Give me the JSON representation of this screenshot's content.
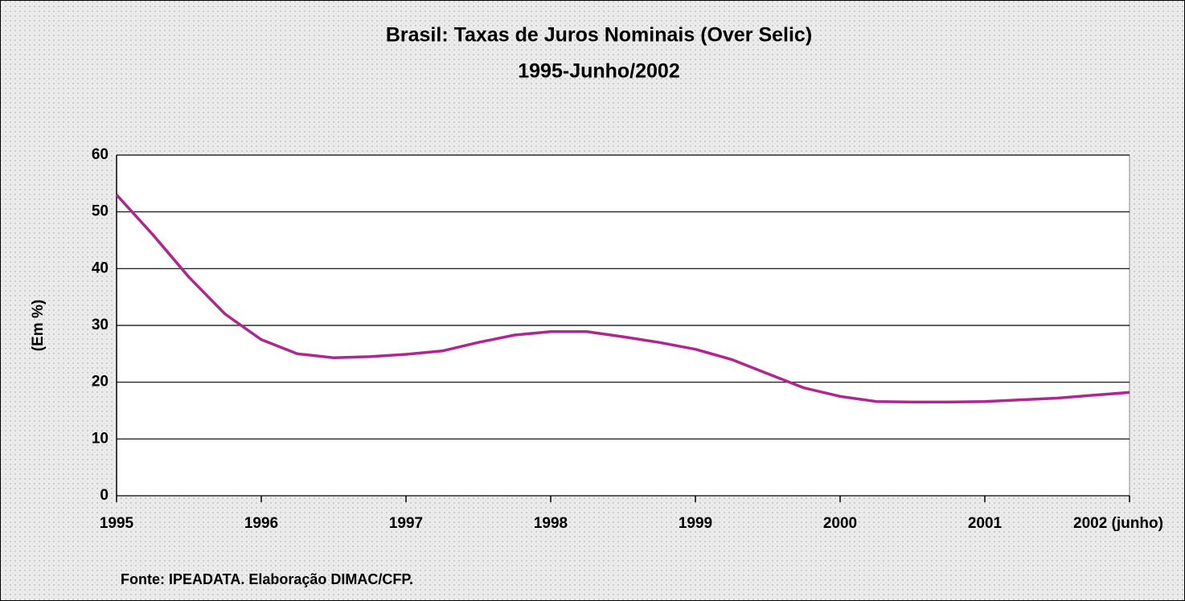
{
  "chart_data": {
    "type": "line",
    "title": "Brasil: Taxas de Juros Nominais (Over Selic)",
    "subtitle": "1995-Junho/2002",
    "y_label": "(Em %)",
    "source": "Fonte: IPEADATA. Elaboração DIMAC/CFP.",
    "x": [
      1995,
      1995.25,
      1995.5,
      1995.75,
      1996,
      1996.25,
      1996.5,
      1996.75,
      1997,
      1997.25,
      1997.5,
      1997.75,
      1998,
      1998.25,
      1998.5,
      1998.75,
      1999,
      1999.25,
      1999.5,
      1999.75,
      2000,
      2000.25,
      2000.5,
      2000.75,
      2001,
      2001.25,
      2001.5,
      2001.75,
      2002
    ],
    "series": [
      {
        "color": "#b02590",
        "values": [
          53,
          46,
          38.5,
          32,
          27.5,
          25,
          24.3,
          24.5,
          24.9,
          25.5,
          27,
          28.3,
          28.9,
          28.9,
          28,
          27,
          25.8,
          24,
          21.5,
          19,
          17.5,
          16.6,
          16.5,
          16.5,
          16.6,
          16.9,
          17.2,
          17.7,
          18.2
        ]
      }
    ],
    "xlim": [
      1995,
      2002
    ],
    "xticks": [
      1995,
      1996,
      1997,
      1998,
      1999,
      2000,
      2001,
      {
        "value": 2002,
        "label": "2002 (junho)"
      }
    ],
    "ylim": [
      0,
      60
    ],
    "yticks": [
      0,
      10,
      20,
      30,
      40,
      50,
      60
    ],
    "grid": true
  }
}
